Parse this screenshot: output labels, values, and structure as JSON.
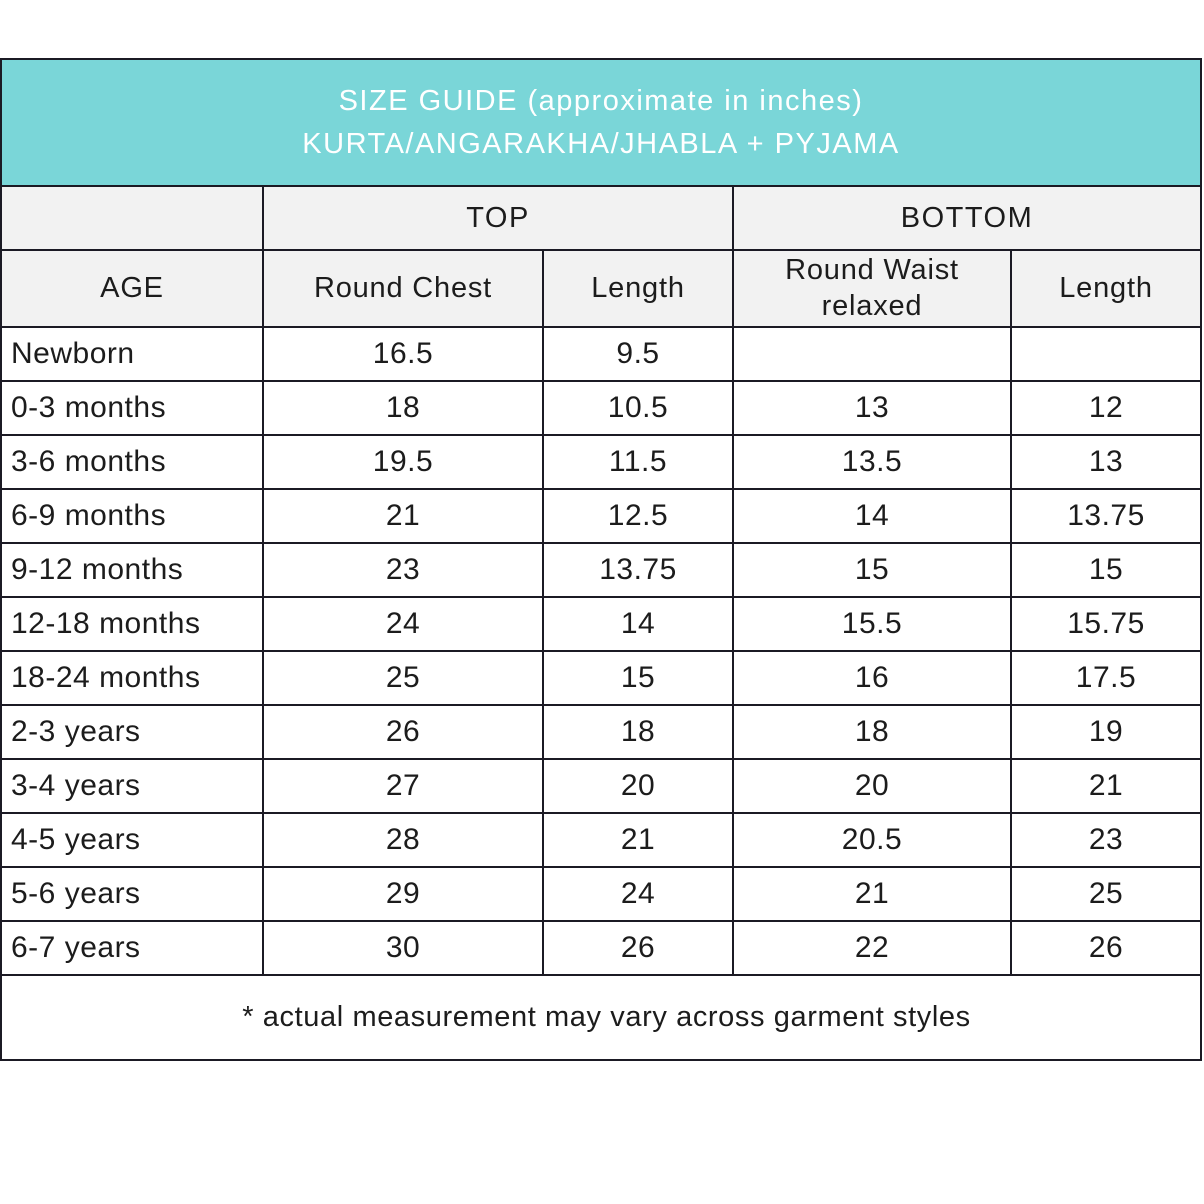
{
  "title": {
    "line1": "SIZE GUIDE (approximate in inches)",
    "line2": "KURTA/ANGARAKHA/JHABLA + PYJAMA"
  },
  "colors": {
    "banner_teal": "#7ad6d8",
    "header_gray": "#f2f2f2",
    "border_dark": "#1b1a24",
    "title_text": "#ffffff",
    "body_text": "#1c1c1c"
  },
  "table": {
    "group_headers": {
      "top": "TOP",
      "bottom": "BOTTOM"
    },
    "column_headers": {
      "age": "AGE",
      "round_chest": "Round Chest",
      "top_length": "Length",
      "round_waist": "Round Waist relaxed",
      "bottom_length": "Length"
    },
    "rows": [
      {
        "age": "Newborn",
        "round_chest": "16.5",
        "top_length": "9.5",
        "round_waist": "",
        "bottom_length": ""
      },
      {
        "age": "0-3 months",
        "round_chest": "18",
        "top_length": "10.5",
        "round_waist": "13",
        "bottom_length": "12"
      },
      {
        "age": "3-6 months",
        "round_chest": "19.5",
        "top_length": "11.5",
        "round_waist": "13.5",
        "bottom_length": "13"
      },
      {
        "age": "6-9 months",
        "round_chest": "21",
        "top_length": "12.5",
        "round_waist": "14",
        "bottom_length": "13.75"
      },
      {
        "age": "9-12 months",
        "round_chest": "23",
        "top_length": "13.75",
        "round_waist": "15",
        "bottom_length": "15"
      },
      {
        "age": "12-18 months",
        "round_chest": "24",
        "top_length": "14",
        "round_waist": "15.5",
        "bottom_length": "15.75"
      },
      {
        "age": "18-24 months",
        "round_chest": "25",
        "top_length": "15",
        "round_waist": "16",
        "bottom_length": "17.5"
      },
      {
        "age": "2-3 years",
        "round_chest": "26",
        "top_length": "18",
        "round_waist": "18",
        "bottom_length": "19"
      },
      {
        "age": "3-4 years",
        "round_chest": "27",
        "top_length": "20",
        "round_waist": "20",
        "bottom_length": "21"
      },
      {
        "age": "4-5 years",
        "round_chest": "28",
        "top_length": "21",
        "round_waist": "20.5",
        "bottom_length": "23"
      },
      {
        "age": "5-6 years",
        "round_chest": "29",
        "top_length": "24",
        "round_waist": "21",
        "bottom_length": "25"
      },
      {
        "age": "6-7 years",
        "round_chest": "30",
        "top_length": "26",
        "round_waist": "22",
        "bottom_length": "26"
      }
    ],
    "footnote": "* actual measurement may vary across garment styles"
  },
  "chart_data": {
    "type": "table",
    "title": "SIZE GUIDE (approximate in inches) KURTA/ANGARAKHA/JHABLA + PYJAMA",
    "column_groups": [
      {
        "label": "",
        "span": 1
      },
      {
        "label": "TOP",
        "span": 2
      },
      {
        "label": "BOTTOM",
        "span": 2
      }
    ],
    "columns": [
      "AGE",
      "Round Chest (TOP)",
      "Length (TOP)",
      "Round Waist relaxed (BOTTOM)",
      "Length (BOTTOM)"
    ],
    "rows": [
      [
        "Newborn",
        16.5,
        9.5,
        null,
        null
      ],
      [
        "0-3 months",
        18,
        10.5,
        13,
        12
      ],
      [
        "3-6 months",
        19.5,
        11.5,
        13.5,
        13
      ],
      [
        "6-9 months",
        21,
        12.5,
        14,
        13.75
      ],
      [
        "9-12 months",
        23,
        13.75,
        15,
        15
      ],
      [
        "12-18 months",
        24,
        14,
        15.5,
        15.75
      ],
      [
        "18-24 months",
        25,
        15,
        16,
        17.5
      ],
      [
        "2-3 years",
        26,
        18,
        18,
        19
      ],
      [
        "3-4 years",
        27,
        20,
        20,
        21
      ],
      [
        "4-5 years",
        28,
        21,
        20.5,
        23
      ],
      [
        "5-6 years",
        29,
        24,
        21,
        25
      ],
      [
        "6-7 years",
        30,
        26,
        22,
        26
      ]
    ],
    "footnote": "* actual measurement may vary across garment styles",
    "units": "inches"
  }
}
